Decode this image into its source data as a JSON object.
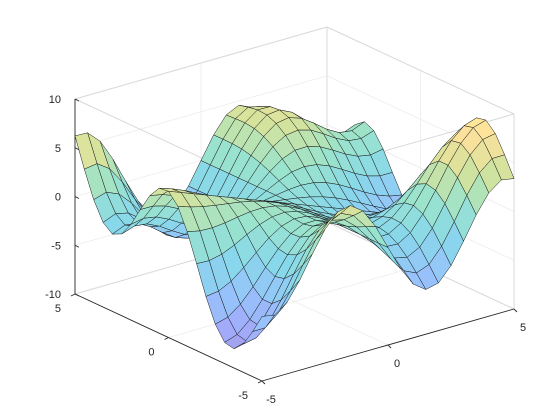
{
  "chart_data": {
    "type": "surface",
    "title": "",
    "xlabel": "",
    "ylabel": "",
    "zlabel": "",
    "x_ticks": [
      "-5",
      "0",
      "5"
    ],
    "y_ticks": [
      "-5",
      "0",
      "5"
    ],
    "z_ticks": [
      "-10",
      "-5",
      "0",
      "5",
      "10"
    ],
    "xlim": [
      -5,
      5
    ],
    "ylim": [
      -5,
      5
    ],
    "zlim": [
      -10,
      10
    ],
    "grid": true,
    "grid_resolution": 21,
    "colormap": "parula",
    "face_alpha": 0.5,
    "edge_color": "#000000",
    "z_function": "y*sin(x) - x*cos(y)",
    "x": [
      -5,
      -4.5,
      -4,
      -3.5,
      -3,
      -2.5,
      -2,
      -1.5,
      -1,
      -0.5,
      0,
      0.5,
      1,
      1.5,
      2,
      2.5,
      3,
      3.5,
      4,
      4.5,
      5
    ],
    "y": [
      -5,
      -4.5,
      -4,
      -3.5,
      -3,
      -2.5,
      -2,
      -1.5,
      -1,
      -0.5,
      0,
      0.5,
      1,
      1.5,
      2,
      2.5,
      3,
      3.5,
      4,
      4.5,
      5
    ]
  }
}
